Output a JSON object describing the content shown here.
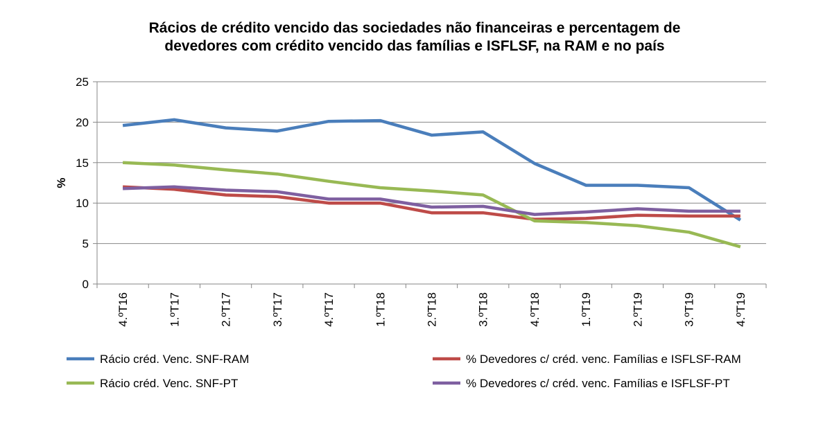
{
  "chart_data": {
    "type": "line",
    "title_lines": [
      "Rácios de crédito vencido das sociedades não financeiras e percentagem de",
      "devedores com crédito vencido das famílias e ISFLSF, na RAM e no país"
    ],
    "ylabel": "%",
    "ylim": [
      0,
      25
    ],
    "yticks": [
      0,
      5,
      10,
      15,
      20,
      25
    ],
    "grid": true,
    "legend_position": "bottom",
    "categories": [
      "4.ºT16",
      "1.ºT17",
      "2.ºT17",
      "3.ºT17",
      "4.ºT17",
      "1.ºT18",
      "2.ºT18",
      "3.ºT18",
      "4.ºT18",
      "1.ºT19",
      "2.ºT19",
      "3.ºT19",
      "4.ºT19"
    ],
    "series": [
      {
        "name": "Rácio créd. Venc. SNF-RAM",
        "color": "#4a7ebb",
        "values": [
          19.6,
          20.3,
          19.3,
          18.9,
          20.1,
          20.2,
          18.4,
          18.8,
          14.9,
          12.2,
          12.2,
          11.9,
          7.9
        ]
      },
      {
        "name": "% Devedores c/ créd. venc. Famílias e ISFLSF-RAM",
        "color": "#be4b48",
        "values": [
          12.0,
          11.7,
          11.0,
          10.8,
          10.0,
          10.0,
          8.8,
          8.8,
          8.0,
          8.1,
          8.5,
          8.4,
          8.4
        ]
      },
      {
        "name": "Rácio créd. Venc. SNF-PT",
        "color": "#98b954",
        "values": [
          15.0,
          14.7,
          14.1,
          13.6,
          12.7,
          11.9,
          11.5,
          11.0,
          7.8,
          7.6,
          7.2,
          6.4,
          4.6
        ]
      },
      {
        "name": "% Devedores c/ créd. venc. Famílias e ISFLSF-PT",
        "color": "#7e5fa0",
        "values": [
          11.8,
          12.0,
          11.6,
          11.4,
          10.5,
          10.5,
          9.5,
          9.6,
          8.6,
          8.9,
          9.3,
          9.0,
          9.0
        ]
      }
    ]
  }
}
